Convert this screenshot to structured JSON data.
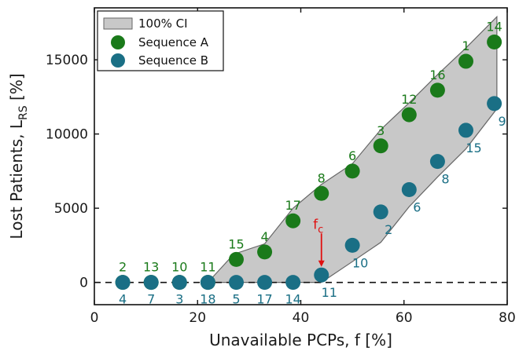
{
  "chart_data": {
    "type": "scatter",
    "xlabel": "Unavailable PCPs, f [%]",
    "ylabel_main": "Lost Patients, L",
    "ylabel_sub": "RS",
    "ylabel_unit": " [%]",
    "xlim": [
      0,
      80
    ],
    "ylim": [
      -1500,
      18500
    ],
    "xticks": [
      0,
      20,
      40,
      60,
      80
    ],
    "yticks": [
      0,
      5000,
      10000,
      15000
    ],
    "reference_line": {
      "y": 0,
      "style": "dashed"
    },
    "legend": {
      "position": "top-left",
      "entries": [
        {
          "label": "100% CI",
          "kind": "patch"
        },
        {
          "label": "Sequence A",
          "kind": "marker",
          "series": "A"
        },
        {
          "label": "Sequence B",
          "kind": "marker",
          "series": "B"
        }
      ]
    },
    "ci_band": {
      "label": "100% CI",
      "upper": [
        [
          22,
          0
        ],
        [
          27,
          1900
        ],
        [
          33,
          2600
        ],
        [
          38.5,
          5000
        ],
        [
          44,
          6600
        ],
        [
          50,
          8000
        ],
        [
          55.5,
          10300
        ],
        [
          61,
          12100
        ],
        [
          66.5,
          14000
        ],
        [
          72,
          15800
        ],
        [
          78,
          17900
        ]
      ],
      "lower": [
        [
          44,
          0
        ],
        [
          50,
          1400
        ],
        [
          55.5,
          2700
        ],
        [
          61,
          5100
        ],
        [
          66.5,
          7100
        ],
        [
          72,
          9000
        ],
        [
          78,
          11700
        ]
      ]
    },
    "series": [
      {
        "name": "Sequence A",
        "color": "#1a7a1a",
        "points": [
          {
            "x": 5.5,
            "y": 0,
            "label": "2"
          },
          {
            "x": 11,
            "y": 0,
            "label": "13"
          },
          {
            "x": 16.5,
            "y": 0,
            "label": "10"
          },
          {
            "x": 22,
            "y": 0,
            "label": "11"
          },
          {
            "x": 27.5,
            "y": 1550,
            "label": "15"
          },
          {
            "x": 33,
            "y": 2050,
            "label": "4"
          },
          {
            "x": 38.5,
            "y": 4150,
            "label": "17"
          },
          {
            "x": 44,
            "y": 6000,
            "label": "8"
          },
          {
            "x": 50,
            "y": 7500,
            "label": "6"
          },
          {
            "x": 55.5,
            "y": 9200,
            "label": "3"
          },
          {
            "x": 61,
            "y": 11300,
            "label": "12"
          },
          {
            "x": 66.5,
            "y": 12950,
            "label": "16"
          },
          {
            "x": 72,
            "y": 14900,
            "label": "1"
          },
          {
            "x": 77.5,
            "y": 16200,
            "label": "14"
          }
        ]
      },
      {
        "name": "Sequence B",
        "color": "#1a6f85",
        "points": [
          {
            "x": 5.5,
            "y": 0,
            "label": "4"
          },
          {
            "x": 11,
            "y": 0,
            "label": "7"
          },
          {
            "x": 16.5,
            "y": 0,
            "label": "3"
          },
          {
            "x": 22,
            "y": 0,
            "label": "18"
          },
          {
            "x": 27.5,
            "y": 0,
            "label": "5"
          },
          {
            "x": 33,
            "y": 0,
            "label": "17"
          },
          {
            "x": 38.5,
            "y": 0,
            "label": "14"
          },
          {
            "x": 44,
            "y": 500,
            "label": "11"
          },
          {
            "x": 50,
            "y": 2500,
            "label": "10"
          },
          {
            "x": 55.5,
            "y": 4750,
            "label": "2"
          },
          {
            "x": 61,
            "y": 6250,
            "label": "6"
          },
          {
            "x": 66.5,
            "y": 8150,
            "label": "8"
          },
          {
            "x": 72,
            "y": 10250,
            "label": "15"
          },
          {
            "x": 77.5,
            "y": 12050,
            "label": "9"
          }
        ]
      }
    ],
    "annotation": {
      "text_main": "f",
      "text_sub": "c",
      "color": "#e01010",
      "x": 44,
      "arrow_from_y": 3300,
      "arrow_to_y": 1050
    }
  }
}
